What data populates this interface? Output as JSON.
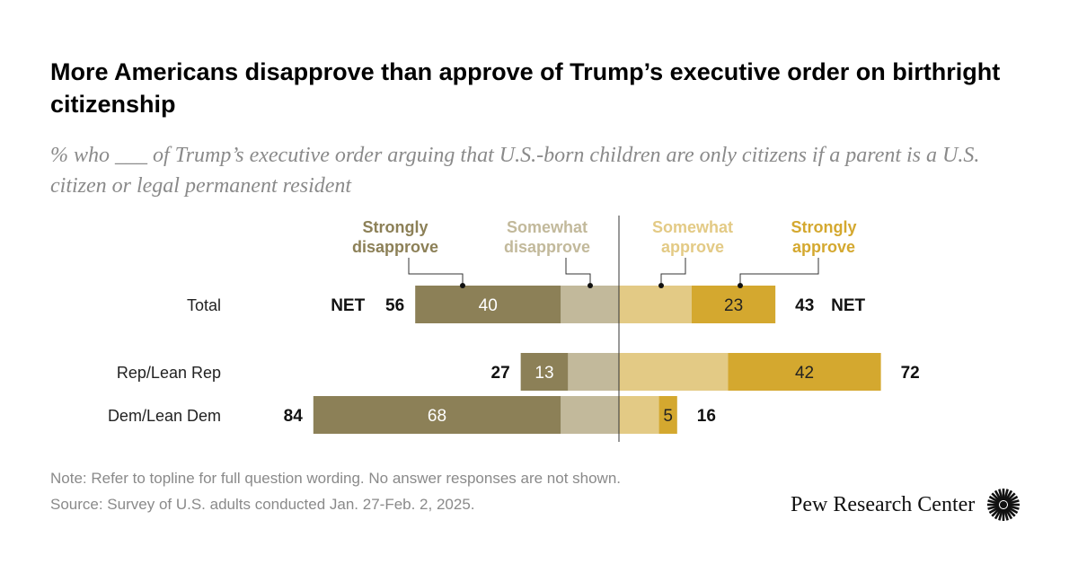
{
  "title": "More Americans disapprove than approve of Trump’s executive order on birthright citizenship",
  "subtitle": "% who ___ of Trump’s executive order arguing that U.S.-born children are only citizens if a parent is a U.S. citizen or legal permanent resident",
  "chart_data": {
    "type": "bar",
    "orientation": "horizontal diverging stacked",
    "categories": [
      "Total",
      "Rep/Lean Rep",
      "Dem/Lean Dem"
    ],
    "series": [
      {
        "name": "Strongly disapprove",
        "side": "left",
        "color": "#8c8057",
        "values": [
          40,
          13,
          68
        ]
      },
      {
        "name": "Somewhat disapprove",
        "side": "left",
        "color": "#c2b99b",
        "values": [
          16,
          14,
          16
        ]
      },
      {
        "name": "Somewhat approve",
        "side": "right",
        "color": "#e3ca85",
        "values": [
          20,
          30,
          11
        ]
      },
      {
        "name": "Strongly approve",
        "side": "right",
        "color": "#d4a82f",
        "values": [
          23,
          42,
          5
        ]
      }
    ],
    "net_disapprove": [
      56,
      27,
      84
    ],
    "net_approve": [
      43,
      72,
      16
    ],
    "net_label": "NET",
    "data_labels_shown": {
      "Strongly disapprove": true,
      "Strongly approve": true
    }
  },
  "note": "Note: Refer to topline for full question wording. No answer responses are not shown.",
  "source": "Source: Survey of U.S. adults conducted Jan. 27-Feb. 2, 2025.",
  "logo": "Pew Research Center"
}
